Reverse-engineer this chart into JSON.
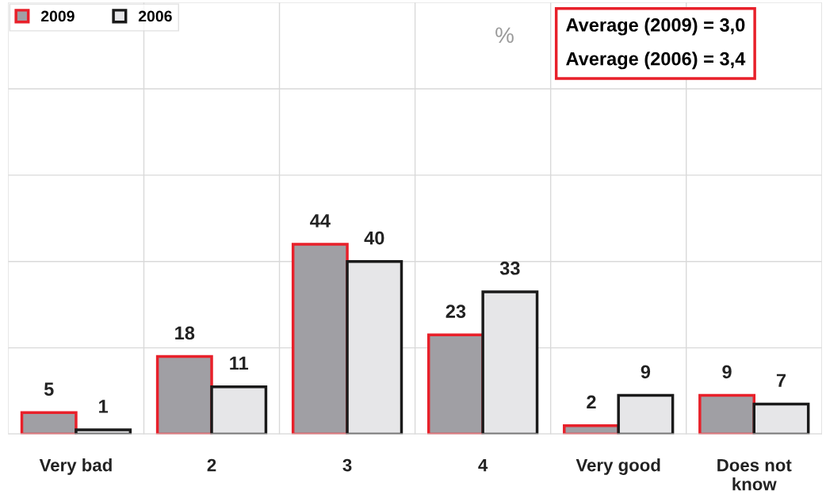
{
  "chart_data": {
    "type": "bar",
    "categories": [
      "Very bad",
      "2",
      "3",
      "4",
      "Very good",
      "Does not\nknow"
    ],
    "series": [
      {
        "name": "2009",
        "color": "#a09fa4",
        "values": [
          5,
          18,
          44,
          23,
          2,
          9
        ]
      },
      {
        "name": "2006",
        "color": "#e6e6e8",
        "values": [
          1,
          11,
          40,
          33,
          9,
          7
        ]
      }
    ],
    "ylim": [
      0,
      100
    ],
    "yticks": [
      {
        "value": 0,
        "label": null
      },
      {
        "value": 20,
        "label": null
      },
      {
        "value": 40,
        "label": null
      },
      {
        "value": 60,
        "label": null
      },
      {
        "value": 80,
        "label": null
      },
      {
        "value": 100,
        "label": null
      }
    ],
    "tick_labels": "x",
    "grid": true,
    "legend": "top left",
    "data_labels": true,
    "annotations": [
      "%",
      "Average (2009) = 3,0",
      "Average (2006) = 3,4"
    ]
  }
}
